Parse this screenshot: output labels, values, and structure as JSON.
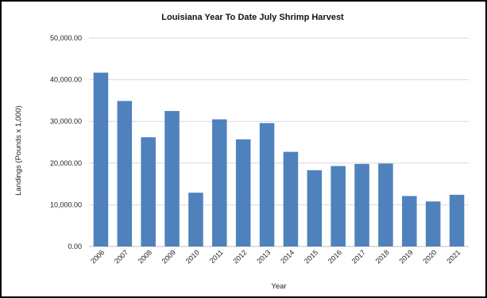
{
  "chart_data": {
    "type": "bar",
    "title": "Louisiana Year To Date July Shrimp Harvest",
    "xlabel": "Year",
    "ylabel": "Landings (Pounds x 1,000)",
    "categories": [
      "2006",
      "2007",
      "2008",
      "2009",
      "2010",
      "2011",
      "2012",
      "2013",
      "2014",
      "2015",
      "2016",
      "2017",
      "2018",
      "2019",
      "2020",
      "2021"
    ],
    "values": [
      41700,
      34900,
      26200,
      32500,
      12900,
      30500,
      25700,
      29600,
      22700,
      18300,
      19300,
      19800,
      19900,
      12100,
      10800,
      12400
    ],
    "yticks": [
      "0.00",
      "10,000.00",
      "20,000.00",
      "30,000.00",
      "40,000.00",
      "50,000.00"
    ],
    "ylim": [
      0,
      50000
    ],
    "grid": true,
    "legend": "none",
    "bar_color": "#4f81bd",
    "grid_color": "#d9d9d9"
  }
}
